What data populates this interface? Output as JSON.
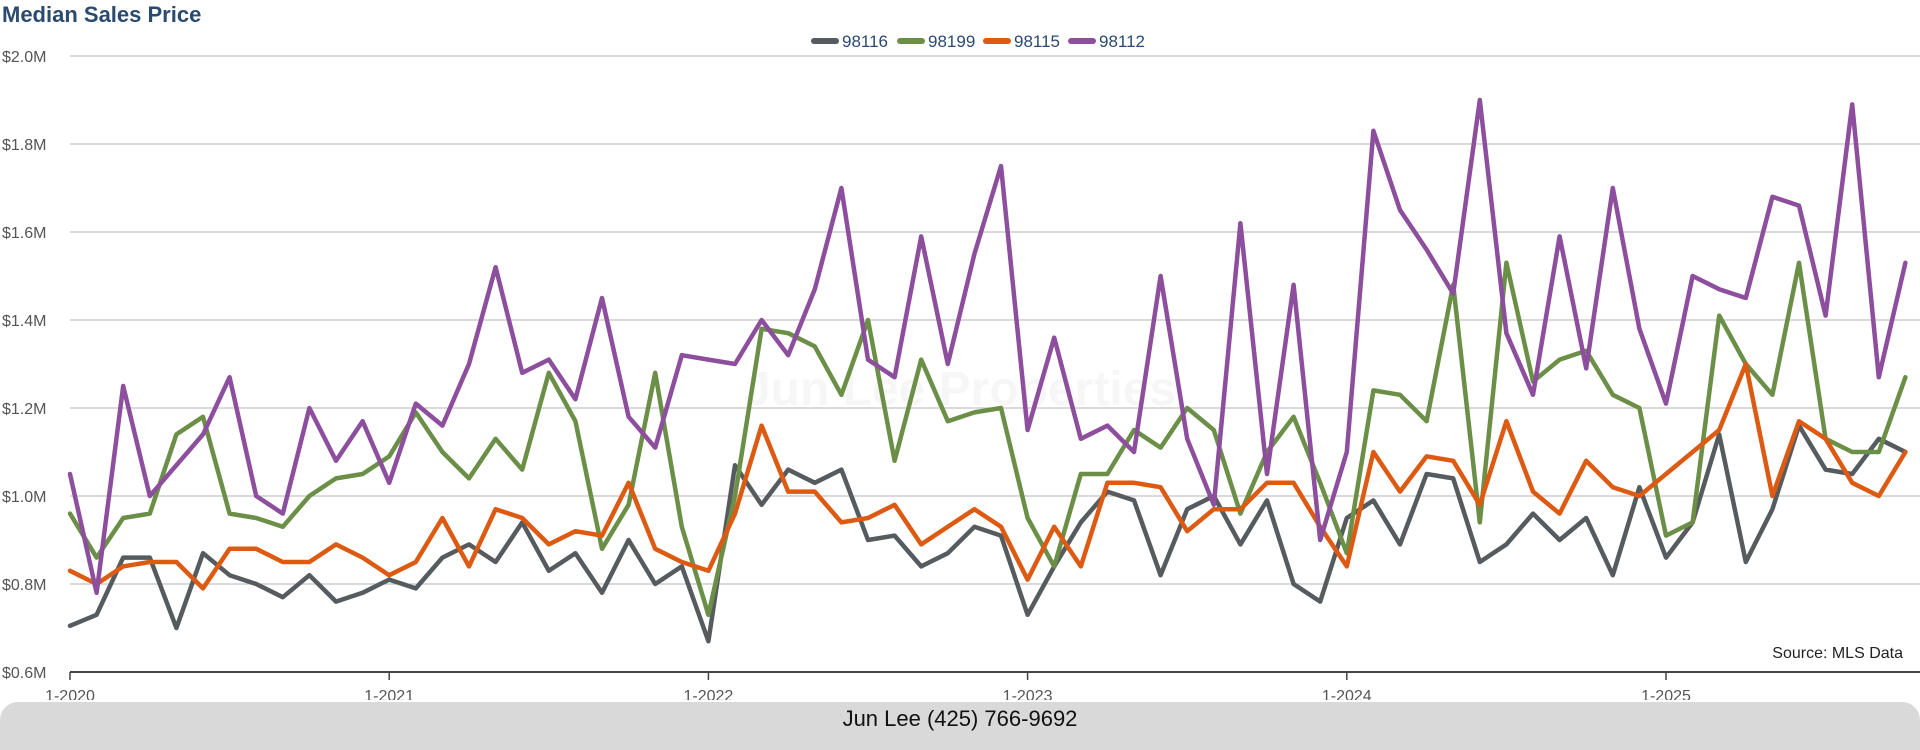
{
  "chart_data": {
    "type": "line",
    "title": "Median Sales Price",
    "source": "Source: MLS Data",
    "watermark": "Jun Lee Properties",
    "xlabel": "",
    "ylabel": "",
    "ylim": [
      0.6,
      2.0
    ],
    "y_ticks": [
      0.6,
      0.8,
      1.0,
      1.2,
      1.4,
      1.6,
      1.8,
      2.0
    ],
    "y_tick_labels": [
      "$0.6M",
      "$0.8M",
      "$1.0M",
      "$1.2M",
      "$1.4M",
      "$1.6M",
      "$1.8M",
      "$2.0M"
    ],
    "x_tick_labels": [
      "1-2020",
      "1-2021",
      "1-2022",
      "1-2023",
      "1-2024",
      "1-2025"
    ],
    "x_tick_indices": [
      0,
      12,
      24,
      36,
      48,
      60
    ],
    "legend_position": "top-center",
    "series": [
      {
        "name": "98116",
        "color": "#555b5e",
        "values": [
          0.705,
          0.73,
          0.86,
          0.86,
          0.7,
          0.87,
          0.82,
          0.8,
          0.77,
          0.82,
          0.76,
          0.78,
          0.81,
          0.79,
          0.86,
          0.89,
          0.85,
          0.94,
          0.83,
          0.87,
          0.78,
          0.9,
          0.8,
          0.84,
          0.67,
          1.07,
          0.98,
          1.06,
          1.03,
          1.06,
          0.9,
          0.91,
          0.84,
          0.87,
          0.93,
          0.91,
          0.73,
          0.84,
          0.94,
          1.01,
          0.99,
          0.82,
          0.97,
          1.0,
          0.89,
          0.99,
          0.8,
          0.76,
          0.95,
          0.99,
          0.89,
          1.05,
          1.04,
          0.85,
          0.89,
          0.96,
          0.9,
          0.95,
          0.82,
          1.02,
          0.86,
          0.94,
          1.14,
          0.85,
          0.97,
          1.16,
          1.06,
          1.05,
          1.13,
          1.1
        ]
      },
      {
        "name": "98199",
        "color": "#6b8f47",
        "values": [
          0.96,
          0.86,
          0.95,
          0.96,
          1.14,
          1.18,
          0.96,
          0.95,
          0.93,
          1.0,
          1.04,
          1.05,
          1.09,
          1.19,
          1.1,
          1.04,
          1.13,
          1.06,
          1.28,
          1.17,
          0.88,
          0.98,
          1.28,
          0.93,
          0.73,
          1.0,
          1.38,
          1.37,
          1.34,
          1.23,
          1.4,
          1.08,
          1.31,
          1.17,
          1.19,
          1.2,
          0.95,
          0.84,
          1.05,
          1.05,
          1.15,
          1.11,
          1.2,
          1.15,
          0.96,
          1.1,
          1.18,
          1.03,
          0.87,
          1.24,
          1.23,
          1.17,
          1.48,
          0.94,
          1.53,
          1.26,
          1.31,
          1.33,
          1.23,
          1.2,
          0.91,
          0.94,
          1.41,
          1.3,
          1.23,
          1.53,
          1.13,
          1.1,
          1.1,
          1.27
        ]
      },
      {
        "name": "98115",
        "color": "#dc5a12",
        "values": [
          0.83,
          0.8,
          0.84,
          0.85,
          0.85,
          0.79,
          0.88,
          0.88,
          0.85,
          0.85,
          0.89,
          0.86,
          0.82,
          0.85,
          0.95,
          0.84,
          0.97,
          0.95,
          0.89,
          0.92,
          0.91,
          1.03,
          0.88,
          0.85,
          0.83,
          0.96,
          1.16,
          1.01,
          1.01,
          0.94,
          0.95,
          0.98,
          0.89,
          0.93,
          0.97,
          0.93,
          0.81,
          0.93,
          0.84,
          1.03,
          1.03,
          1.02,
          0.92,
          0.97,
          0.97,
          1.03,
          1.03,
          0.93,
          0.84,
          1.1,
          1.01,
          1.09,
          1.08,
          0.98,
          1.17,
          1.01,
          0.96,
          1.08,
          1.02,
          1.0,
          1.05,
          1.1,
          1.15,
          1.3,
          1.0,
          1.17,
          1.13,
          1.03,
          1.0,
          1.1
        ]
      },
      {
        "name": "98112",
        "color": "#8d4e9e",
        "values": [
          1.05,
          0.78,
          1.25,
          1.0,
          1.07,
          1.14,
          1.27,
          1.0,
          0.96,
          1.2,
          1.08,
          1.17,
          1.03,
          1.21,
          1.16,
          1.3,
          1.52,
          1.28,
          1.31,
          1.22,
          1.45,
          1.18,
          1.11,
          1.32,
          1.31,
          1.3,
          1.4,
          1.32,
          1.47,
          1.7,
          1.31,
          1.27,
          1.59,
          1.3,
          1.55,
          1.75,
          1.15,
          1.36,
          1.13,
          1.16,
          1.1,
          1.5,
          1.13,
          0.98,
          1.62,
          1.05,
          1.48,
          0.9,
          1.1,
          1.83,
          1.65,
          1.56,
          1.46,
          1.9,
          1.37,
          1.23,
          1.59,
          1.29,
          1.7,
          1.38,
          1.21,
          1.5,
          1.47,
          1.45,
          1.68,
          1.66,
          1.41,
          1.89,
          1.27,
          1.53
        ]
      }
    ]
  },
  "footer": {
    "contact": "Jun Lee (425) 766-9692"
  }
}
